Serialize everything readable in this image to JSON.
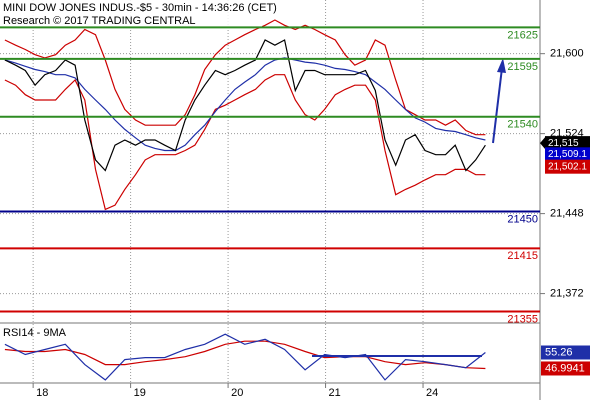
{
  "chart_data": [
    {
      "type": "line",
      "title": "MINI DOW JONES INDUS.-$5 - 30min - 14:36:26 (CET)",
      "subtitle": "Research © 2017 TRADING CENTRAL",
      "x": [
        -0.29,
        -0.18,
        -0.08,
        0.02,
        0.12,
        0.23,
        0.33,
        0.43,
        0.53,
        0.64,
        0.74,
        0.84,
        0.94,
        1.05,
        1.15,
        1.25,
        1.35,
        1.46,
        1.56,
        1.66,
        1.76,
        1.87,
        1.97,
        2.07,
        2.17,
        2.28,
        2.38,
        2.48,
        2.58,
        2.69,
        2.79,
        2.89,
        2.99,
        3.1,
        3.2,
        3.3,
        3.41,
        3.51,
        3.61,
        3.72,
        3.82,
        3.92,
        4.02,
        4.13,
        4.23,
        4.33,
        4.44,
        4.54,
        4.64
      ],
      "xlim": [
        -0.34,
        5.2
      ],
      "ylim": [
        21345,
        21651
      ],
      "yticks": [
        {
          "value": 21600,
          "label": "21,600"
        },
        {
          "value": 21524,
          "label": "21,524"
        },
        {
          "value": 21448,
          "label": "21,448"
        },
        {
          "value": 21372,
          "label": "21,372"
        }
      ],
      "grid": true,
      "series": [
        {
          "color": "#cc0000",
          "values": [
            21613,
            21608,
            21604,
            21599,
            21596,
            21599,
            21608,
            21613,
            21623,
            21618,
            21594,
            21566,
            21547,
            21537,
            21532,
            21532,
            21532,
            21532,
            21542,
            21561,
            21585,
            21599,
            21608,
            21613,
            21618,
            21623,
            21627,
            21632,
            21627,
            21623,
            21627,
            21623,
            21618,
            21613,
            21599,
            21589,
            21594,
            21613,
            21608,
            21575,
            21547,
            21542,
            21537,
            21537,
            21532,
            21537,
            21527,
            21523,
            21523
          ]
        },
        {
          "color": "#cc0000",
          "values": [
            21575,
            21570,
            21561,
            21556,
            21556,
            21556,
            21566,
            21575,
            21556,
            21490,
            21452,
            21456,
            21471,
            21485,
            21499,
            21504,
            21504,
            21504,
            21508,
            21513,
            21528,
            21547,
            21551,
            21556,
            21561,
            21566,
            21575,
            21580,
            21580,
            21556,
            21542,
            21537,
            21547,
            21561,
            21566,
            21570,
            21570,
            21556,
            21508,
            21466,
            21471,
            21475,
            21480,
            21485,
            21485,
            21490,
            21490,
            21485,
            21485
          ]
        },
        {
          "color": "#1f2fa8",
          "values": [
            21594,
            21591,
            21588,
            21585,
            21583,
            21580,
            21580,
            21577,
            21566,
            21556,
            21547,
            21537,
            21528,
            21520,
            21513,
            21510,
            21508,
            21508,
            21513,
            21523,
            21532,
            21545,
            21556,
            21566,
            21573,
            21580,
            21589,
            21594,
            21596,
            21594,
            21592,
            21591,
            21589,
            21586,
            21585,
            21583,
            21580,
            21573,
            21566,
            21556,
            21547,
            21539,
            21535,
            21529,
            21527,
            21526,
            21523,
            21520,
            21518
          ]
        },
        {
          "color": "#000000",
          "values": [
            21594,
            21589,
            21584,
            21570,
            21580,
            21584,
            21594,
            21589,
            21537,
            21499,
            21489,
            21513,
            21518,
            21513,
            21518,
            21518,
            21513,
            21508,
            21537,
            21556,
            21570,
            21584,
            21580,
            21584,
            21589,
            21594,
            21613,
            21608,
            21613,
            21565,
            21584,
            21584,
            21580,
            21580,
            21580,
            21580,
            21584,
            21565,
            21518,
            21494,
            21518,
            21523,
            21508,
            21504,
            21504,
            21513,
            21489,
            21499,
            21513
          ]
        }
      ],
      "levels": [
        {
          "value": 21625,
          "color": "#2e8b22"
        },
        {
          "value": 21595,
          "color": "#2e8b22"
        },
        {
          "value": 21540,
          "color": "#2e8b22"
        },
        {
          "value": 21450,
          "color": "#00008b"
        },
        {
          "value": 21415,
          "color": "#d00000"
        },
        {
          "value": 21355,
          "color": "#d00000"
        }
      ],
      "markers": [
        {
          "value": 21515,
          "label": "21,515",
          "color": "#000000"
        },
        {
          "value": 21509.1,
          "label": "21,509.1",
          "color": "#0000cc"
        },
        {
          "value": 21502.1,
          "label": "21,502.1",
          "color": "#cc0000"
        }
      ]
    },
    {
      "type": "line",
      "title": "RSI14 - 9MA",
      "x": [
        -0.29,
        -0.08,
        0.12,
        0.33,
        0.53,
        0.74,
        0.94,
        1.15,
        1.35,
        1.56,
        1.76,
        1.97,
        2.17,
        2.38,
        2.58,
        2.79,
        2.99,
        3.2,
        3.41,
        3.61,
        3.82,
        4.02,
        4.23,
        4.44,
        4.64
      ],
      "xlim": [
        -0.34,
        5.2
      ],
      "ylim": [
        40,
        70
      ],
      "xticks": [
        {
          "value": 0,
          "label": "18"
        },
        {
          "value": 1,
          "label": "19"
        },
        {
          "value": 2,
          "label": "20"
        },
        {
          "value": 3,
          "label": "21"
        },
        {
          "value": 4,
          "label": "24"
        }
      ],
      "series": [
        {
          "color": "#cc0000",
          "values": [
            56.8,
            55.8,
            55.8,
            56.8,
            54.2,
            49.0,
            49.0,
            50.5,
            51.6,
            53.1,
            55.8,
            59.5,
            61.1,
            61.1,
            59.5,
            55.8,
            52.6,
            53.1,
            53.1,
            50.5,
            49.0,
            50.0,
            49.0,
            47.4,
            46.9941
          ]
        },
        {
          "color": "#1f2fa8",
          "values": [
            59.5,
            54.2,
            56.8,
            59.5,
            49.0,
            41.1,
            51.6,
            52.6,
            52.6,
            56.8,
            59.5,
            64.7,
            59.5,
            62.1,
            56.8,
            46.3,
            54.2,
            52.6,
            54.2,
            41.1,
            51.6,
            50.5,
            49.0,
            47.4,
            55.26
          ]
        }
      ]
    }
  ]
}
